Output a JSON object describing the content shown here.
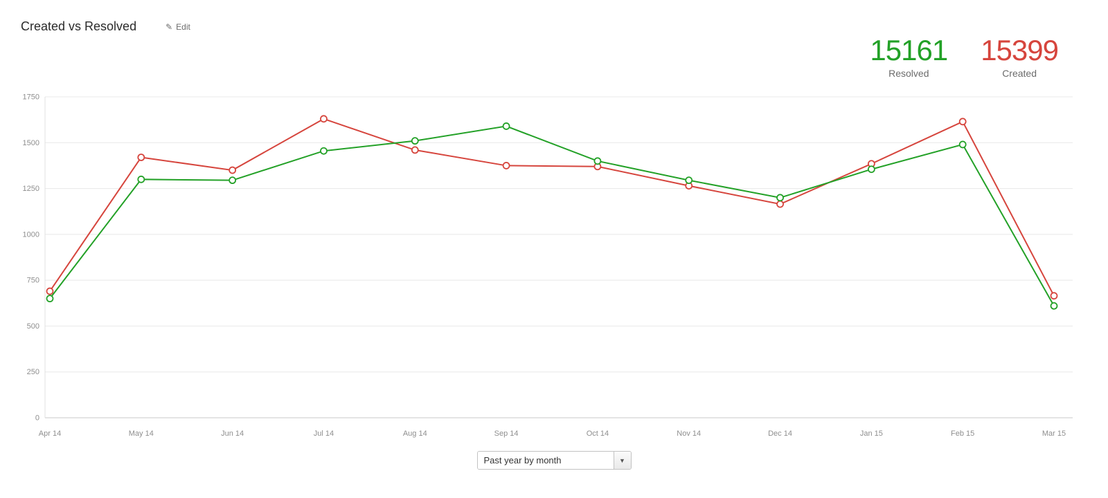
{
  "header": {
    "title": "Created vs Resolved",
    "edit_label": "Edit"
  },
  "totals": {
    "resolved": {
      "value": "15161",
      "label": "Resolved",
      "color": "#23a127"
    },
    "created": {
      "value": "15399",
      "label": "Created",
      "color": "#d6453d"
    }
  },
  "chart_data": {
    "type": "line",
    "title": "Created vs Resolved",
    "categories": [
      "Apr 14",
      "May 14",
      "Jun 14",
      "Jul 14",
      "Aug 14",
      "Sep 14",
      "Oct 14",
      "Nov 14",
      "Dec 14",
      "Jan 15",
      "Feb 15",
      "Mar 15"
    ],
    "series": [
      {
        "name": "Created",
        "color": "#d6453d",
        "values": [
          690,
          1420,
          1350,
          1630,
          1460,
          1375,
          1370,
          1265,
          1165,
          1385,
          1615,
          665
        ]
      },
      {
        "name": "Resolved",
        "color": "#23a127",
        "values": [
          650,
          1300,
          1295,
          1455,
          1510,
          1590,
          1400,
          1295,
          1200,
          1355,
          1490,
          610
        ]
      }
    ],
    "xlabel": "",
    "ylabel": "",
    "ylim": [
      0,
      1750
    ],
    "yticks": [
      0,
      250,
      500,
      750,
      1000,
      1250,
      1500,
      1750
    ],
    "grid": true,
    "legend_position": "none",
    "marker": "open-circle"
  },
  "footer": {
    "period_selector": {
      "value": "Past year by month"
    }
  }
}
